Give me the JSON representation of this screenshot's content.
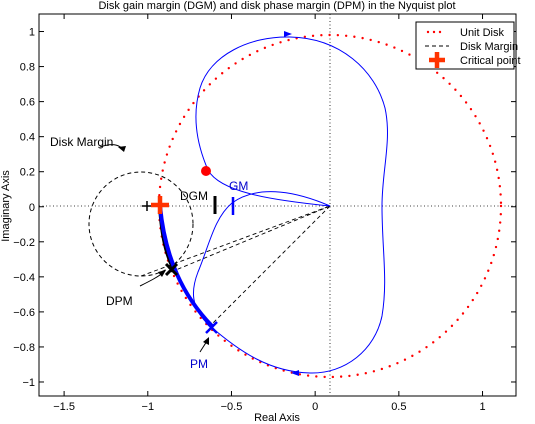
{
  "chart_data": {
    "type": "line",
    "title": "Disk gain margin (DGM) and disk phase margin (DPM) in the Nyquist plot",
    "xlabel": "Real Axis",
    "ylabel": "Imaginary Axis",
    "xlim": [
      -1.65,
      1.2
    ],
    "ylim": [
      -1.08,
      1.1
    ],
    "xticks": [
      -1.5,
      -1,
      -0.5,
      0,
      0.5,
      1
    ],
    "xtick_labels": [
      "−1.5",
      "−1",
      "−0.5",
      "0",
      "0.5",
      "1"
    ],
    "yticks": [
      1,
      0.8,
      0.6,
      0.4,
      0.2,
      0,
      -0.2,
      -0.4,
      -0.6,
      -0.8,
      -1
    ],
    "ytick_labels": [
      "1",
      "0.8",
      "0.6",
      "0.4",
      "0.2",
      "0",
      "−0.2",
      "−0.4",
      "−0.6",
      "−0.8",
      "−1"
    ],
    "grid": "dotted lines at x = 0 and y = 0",
    "series": [
      {
        "name": "Unit Disk",
        "style": "red dotted circle",
        "color": "#ff0000",
        "center": [
          0,
          0
        ],
        "radius": 1
      },
      {
        "name": "Disk Margin",
        "style": "black dashed circle",
        "color": "#000000",
        "center": [
          -1.1,
          -0.1
        ],
        "radius": 0.31
      },
      {
        "name": "Critical point",
        "style": "red plus marker",
        "color": "#ff3300",
        "x": [
          -1
        ],
        "y": [
          0
        ]
      },
      {
        "name": "",
        "style": "blue solid Nyquist curve",
        "color": "#0000ff",
        "points": [
          [
            0,
            0
          ],
          [
            -0.05,
            0.03
          ],
          [
            -0.15,
            0.06
          ],
          [
            -0.25,
            0.08
          ],
          [
            -0.38,
            0.07
          ],
          [
            -0.5,
            0.04
          ],
          [
            -0.6,
            0.015
          ],
          [
            -0.7,
            -0.03
          ],
          [
            -0.76,
            -0.15
          ],
          [
            -0.82,
            -0.33
          ],
          [
            -0.87,
            -0.5
          ],
          [
            -0.93,
            -0.66
          ],
          [
            -0.92,
            -0.78
          ],
          [
            -0.75,
            -0.93
          ],
          [
            -0.55,
            -0.98
          ],
          [
            -0.3,
            -0.98
          ],
          [
            -0.05,
            -0.97
          ],
          [
            0.15,
            -0.9
          ],
          [
            0.28,
            -0.72
          ],
          [
            0.3,
            -0.5
          ],
          [
            0.32,
            -0.3
          ],
          [
            0.31,
            -0.1
          ],
          [
            0.3,
            0.1
          ],
          [
            0.32,
            0.3
          ],
          [
            0.34,
            0.5
          ],
          [
            0.33,
            0.68
          ],
          [
            0.24,
            0.85
          ],
          [
            0.05,
            0.97
          ],
          [
            -0.2,
            0.98
          ],
          [
            -0.45,
            0.9
          ],
          [
            -0.62,
            0.72
          ],
          [
            -0.7,
            0.5
          ],
          [
            -0.68,
            0.3
          ],
          [
            -0.55,
            0.12
          ],
          [
            -0.35,
            0.05
          ],
          [
            -0.18,
            0.02
          ],
          [
            -0.05,
            0.01
          ],
          [
            0,
            0
          ]
        ]
      }
    ],
    "annotations": [
      {
        "text": "Disk Margin",
        "color": "#000000",
        "at": [
          -1.45,
          0.37
        ]
      },
      {
        "text": "DGM",
        "color": "#000000",
        "at": [
          -0.79,
          0.05
        ]
      },
      {
        "text": "GM",
        "color": "#0000cc",
        "at": [
          -0.57,
          0.1
        ]
      },
      {
        "text": "DPM",
        "color": "#000000",
        "at": [
          -1.07,
          -0.56
        ]
      },
      {
        "text": "PM",
        "color": "#0000cc",
        "at": [
          -0.8,
          -0.95
        ]
      }
    ],
    "legend": {
      "placement": "top-right",
      "entries": [
        "Unit Disk",
        "Disk Margin",
        "Critical point"
      ]
    }
  }
}
